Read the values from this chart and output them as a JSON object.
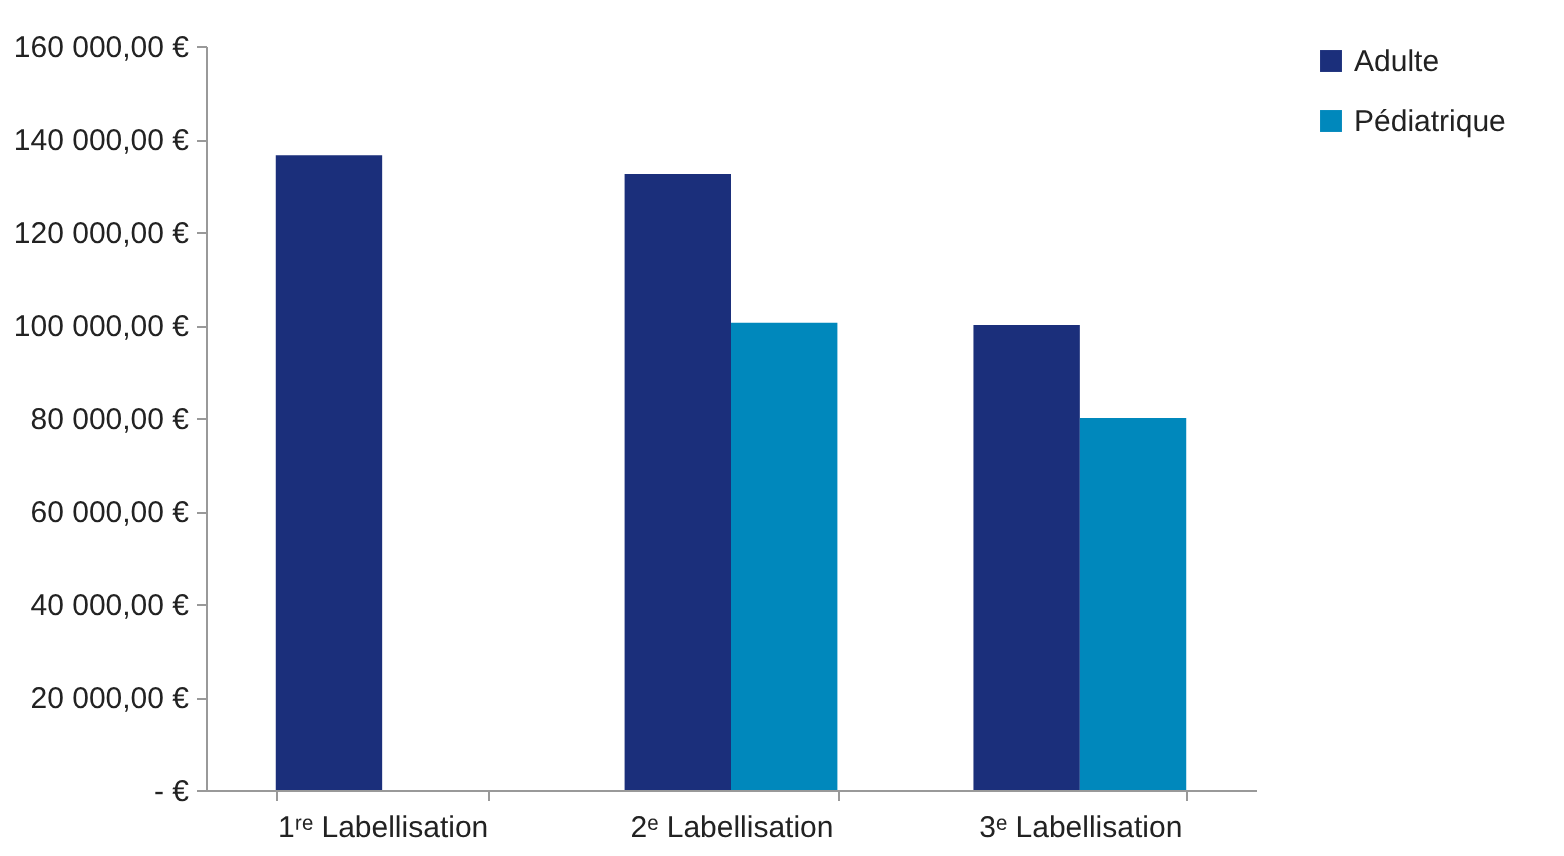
{
  "chart_data": {
    "type": "bar",
    "categories": [
      "1ʳᵉ Labellisation",
      "2ᵉ Labellisation",
      "3ᵉ Labellisation"
    ],
    "series": [
      {
        "name": "Adulte",
        "color": "#1b2f7b",
        "values": [
          136500,
          132500,
          100000
        ]
      },
      {
        "name": "Pédiatrique",
        "color": "#0088bc",
        "values": [
          null,
          100500,
          80000
        ]
      }
    ],
    "ylim": [
      0,
      160000
    ],
    "yticks": [
      {
        "value": 0,
        "label": "- €"
      },
      {
        "value": 20000,
        "label": "20 000,00 €"
      },
      {
        "value": 40000,
        "label": "40 000,00 €"
      },
      {
        "value": 60000,
        "label": "60 000,00 €"
      },
      {
        "value": 80000,
        "label": "80 000,00 €"
      },
      {
        "value": 100000,
        "label": "100 000,00 €"
      },
      {
        "value": 120000,
        "label": "120 000,00 €"
      },
      {
        "value": 140000,
        "label": "140 000,00 €"
      },
      {
        "value": 160000,
        "label": "160 000,00 €"
      }
    ],
    "legend": "right"
  }
}
